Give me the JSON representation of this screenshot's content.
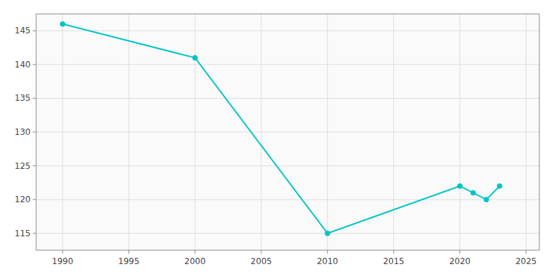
{
  "chart_data": {
    "type": "line",
    "x": [
      1990,
      2000,
      2010,
      2020,
      2021,
      2022,
      2023
    ],
    "values": [
      146,
      141,
      115,
      122,
      121,
      120,
      122
    ],
    "color": "#00C5C5",
    "marker": "circle",
    "xlim": [
      1988,
      2026
    ],
    "ylim": [
      112.5,
      147.5
    ],
    "xticks": [
      1990,
      1995,
      2000,
      2005,
      2010,
      2015,
      2020,
      2025
    ],
    "yticks": [
      115,
      120,
      125,
      130,
      135,
      140,
      145
    ],
    "grid": true
  }
}
